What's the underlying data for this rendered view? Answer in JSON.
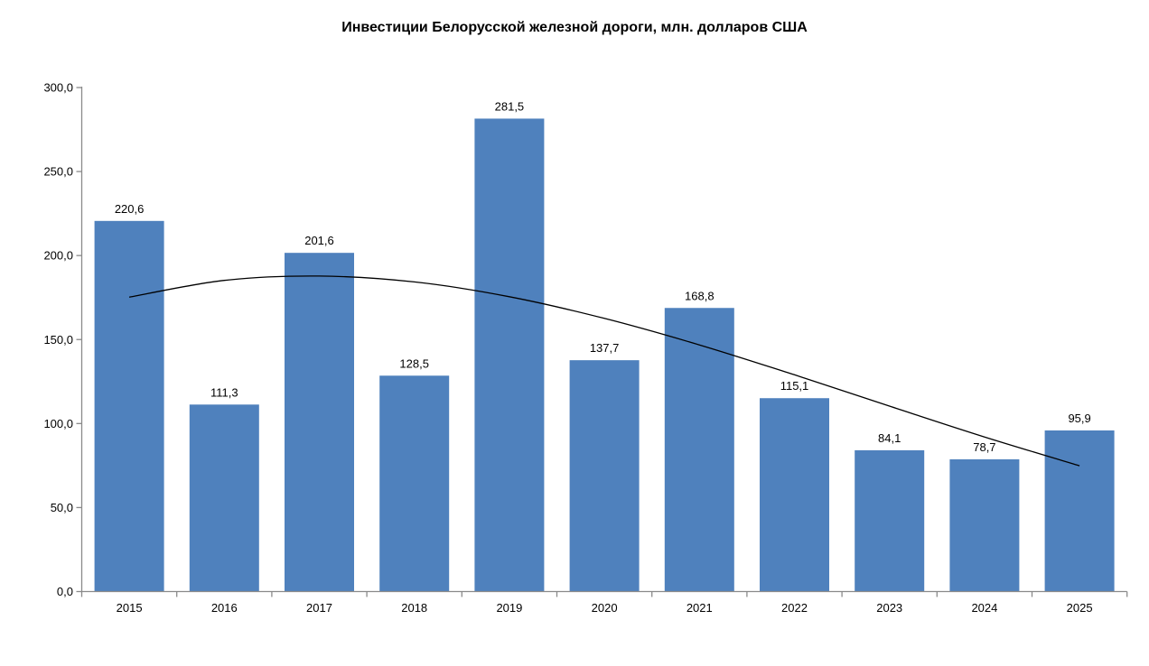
{
  "chart_data": {
    "type": "bar",
    "title": "Инвестиции Белорусской железной дороги, млн. долларов США",
    "categories": [
      "2015",
      "2016",
      "2017",
      "2018",
      "2019",
      "2020",
      "2021",
      "2022",
      "2023",
      "2024",
      "2025"
    ],
    "values": [
      220.6,
      111.3,
      201.6,
      128.5,
      281.5,
      137.7,
      168.8,
      115.1,
      84.1,
      78.7,
      95.9
    ],
    "value_labels": [
      "220,6",
      "111,3",
      "201,6",
      "128,5",
      "281,5",
      "137,7",
      "168,8",
      "115,1",
      "84,1",
      "78,7",
      "95,9"
    ],
    "xlabel": "",
    "ylabel": "",
    "y_axis": {
      "min": 0,
      "max": 300,
      "tick_step": 50,
      "tick_values": [
        0,
        50,
        100,
        150,
        200,
        250,
        300
      ],
      "tick_labels": [
        "0,0",
        "50,0",
        "100,0",
        "150,0",
        "200,0",
        "250,0",
        "300,0"
      ]
    },
    "trendline": {
      "type": "polynomial",
      "order": 3,
      "values_at_categories": [
        175.2,
        185.2,
        187.8,
        184.3,
        175.5,
        162.6,
        146.8,
        129.0,
        110.4,
        92.0,
        74.9
      ],
      "color": "#000000"
    },
    "legend": "none",
    "grid": "off",
    "colors": {
      "bar": "#4f81bd",
      "axis": "#8a8a8a",
      "text": "#000000",
      "background": "#ffffff"
    }
  }
}
